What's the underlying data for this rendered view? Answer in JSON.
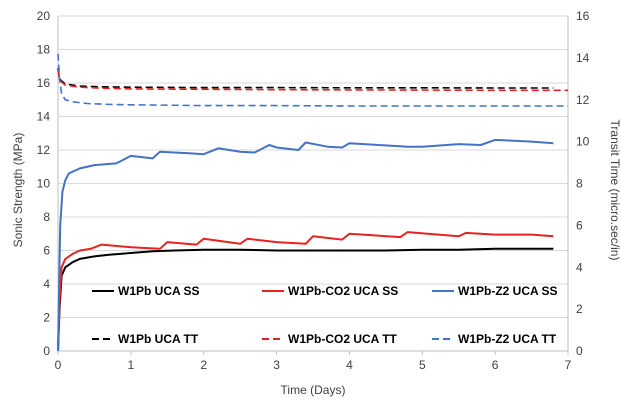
{
  "chart_data": {
    "type": "line",
    "xlabel": "Time (Days)",
    "ylabel": "Sonic Strength (MPa)",
    "y2label": "Transit Time (micro.sec/in)",
    "xlim": [
      0,
      7
    ],
    "ylim": [
      0,
      20
    ],
    "y2lim": [
      0,
      16
    ],
    "xticks": [
      "0",
      "1",
      "2",
      "3",
      "4",
      "5",
      "6",
      "7"
    ],
    "yticks": [
      "0",
      "2",
      "4",
      "6",
      "8",
      "10",
      "12",
      "14",
      "16",
      "18",
      "20"
    ],
    "y2ticks": [
      "0",
      "2",
      "4",
      "6",
      "8",
      "10",
      "12",
      "14",
      "16"
    ],
    "grid": "horizontal",
    "legend_position": "bottom",
    "series": [
      {
        "name": "W1Pb UCA SS",
        "axis": "left",
        "color": "#000000",
        "dash": "solid",
        "x": [
          0,
          0.02,
          0.05,
          0.1,
          0.2,
          0.3,
          0.5,
          0.7,
          1.0,
          1.3,
          1.6,
          2.0,
          2.5,
          3.0,
          3.5,
          4.0,
          4.5,
          5.0,
          5.5,
          6.0,
          6.5,
          6.8
        ],
        "y": [
          0,
          2.5,
          4.5,
          5.0,
          5.3,
          5.5,
          5.65,
          5.75,
          5.85,
          5.95,
          6.0,
          6.05,
          6.05,
          6.0,
          6.0,
          6.0,
          6.0,
          6.05,
          6.05,
          6.1,
          6.1,
          6.1
        ]
      },
      {
        "name": "W1Pb-CO2 UCA SS",
        "axis": "left",
        "color": "#e8231f",
        "dash": "solid",
        "x": [
          0,
          0.02,
          0.05,
          0.1,
          0.2,
          0.3,
          0.45,
          0.6,
          1.0,
          1.4,
          1.5,
          1.9,
          2.0,
          2.5,
          2.6,
          3.0,
          3.4,
          3.5,
          3.9,
          4.0,
          4.7,
          4.8,
          5.5,
          5.6,
          6.0,
          6.5,
          6.8
        ],
        "y": [
          0,
          3.0,
          5.0,
          5.5,
          5.8,
          6.0,
          6.1,
          6.35,
          6.2,
          6.1,
          6.5,
          6.35,
          6.7,
          6.4,
          6.7,
          6.5,
          6.4,
          6.85,
          6.65,
          7.0,
          6.8,
          7.1,
          6.85,
          7.05,
          6.95,
          6.95,
          6.85
        ]
      },
      {
        "name": "W1Pb-Z2 UCA SS",
        "axis": "left",
        "color": "#4472c4",
        "dash": "solid",
        "x": [
          0,
          0.03,
          0.06,
          0.1,
          0.15,
          0.3,
          0.5,
          0.8,
          1.0,
          1.3,
          1.4,
          1.8,
          2.0,
          2.2,
          2.5,
          2.7,
          2.9,
          3.0,
          3.3,
          3.4,
          3.7,
          3.9,
          4.0,
          4.4,
          4.8,
          5.0,
          5.5,
          5.8,
          6.0,
          6.5,
          6.8
        ],
        "y": [
          0,
          7.5,
          9.5,
          10.2,
          10.6,
          10.9,
          11.1,
          11.2,
          11.65,
          11.5,
          11.9,
          11.8,
          11.75,
          12.1,
          11.9,
          11.85,
          12.3,
          12.15,
          12.0,
          12.45,
          12.2,
          12.15,
          12.4,
          12.3,
          12.2,
          12.2,
          12.35,
          12.3,
          12.6,
          12.5,
          12.4
        ]
      },
      {
        "name": "W1Pb UCA TT",
        "axis": "right",
        "color": "#000000",
        "dash": "dashed",
        "x": [
          0,
          0.02,
          0.05,
          0.1,
          0.3,
          0.6,
          1.0,
          2.0,
          3.0,
          4.0,
          5.0,
          6.0,
          6.8
        ],
        "y": [
          13.5,
          13.0,
          12.9,
          12.75,
          12.65,
          12.62,
          12.6,
          12.58,
          12.58,
          12.57,
          12.57,
          12.56,
          12.56
        ]
      },
      {
        "name": "W1Pb-CO2 UCA TT",
        "axis": "right",
        "color": "#e8231f",
        "dash": "dashed",
        "x": [
          0,
          0.02,
          0.05,
          0.1,
          0.3,
          0.6,
          1.0,
          2.0,
          3.0,
          4.0,
          5.0,
          6.0,
          7.0
        ],
        "y": [
          13.4,
          12.95,
          12.85,
          12.7,
          12.6,
          12.55,
          12.52,
          12.5,
          12.48,
          12.47,
          12.46,
          12.45,
          12.45
        ]
      },
      {
        "name": "W1Pb-Z2 UCA TT",
        "axis": "right",
        "color": "#4472c4",
        "dash": "dashed",
        "x": [
          0,
          0.02,
          0.05,
          0.1,
          0.2,
          0.4,
          0.7,
          1.0,
          2.0,
          3.0,
          4.0,
          5.0,
          6.0,
          7.0
        ],
        "y": [
          14.2,
          13.0,
          12.3,
          12.0,
          11.9,
          11.82,
          11.78,
          11.76,
          11.72,
          11.72,
          11.7,
          11.7,
          11.7,
          11.7
        ]
      }
    ]
  }
}
